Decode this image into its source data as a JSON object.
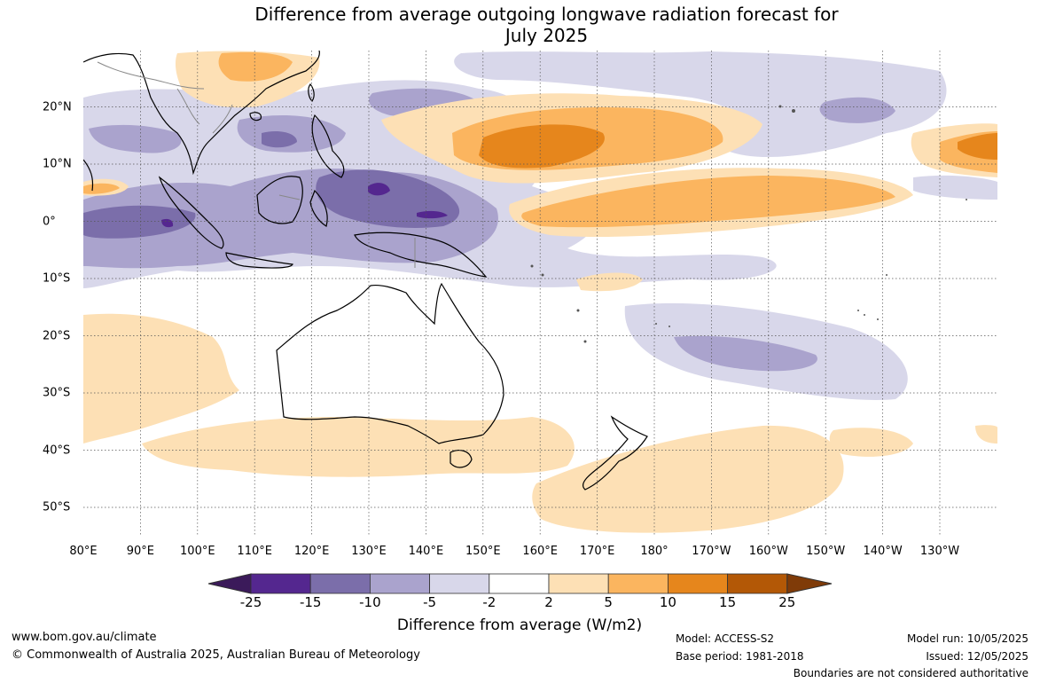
{
  "title": {
    "line1": "Difference from average outgoing longwave radiation forecast for",
    "line2": "July 2025"
  },
  "map": {
    "longitude_labels": [
      "80°E",
      "90°E",
      "100°E",
      "110°E",
      "120°E",
      "130°E",
      "140°E",
      "150°E",
      "160°E",
      "170°E",
      "180°",
      "170°W",
      "160°W",
      "150°W",
      "140°W",
      "130°W"
    ],
    "latitude_labels": [
      "20°N",
      "10°N",
      "0°",
      "10°S",
      "20°S",
      "30°S",
      "40°S",
      "50°S"
    ],
    "extent": {
      "lon_min": 80,
      "lon_max": 240,
      "lat_min": -55,
      "lat_max": 30
    }
  },
  "colorbar": {
    "tick_labels": [
      "-25",
      "-15",
      "-10",
      "-5",
      "-2",
      "2",
      "5",
      "10",
      "15",
      "25"
    ],
    "bins": [
      {
        "range": "< -25",
        "color": "#3b1a5a"
      },
      {
        "range": "-25 to -15",
        "color": "#54278f"
      },
      {
        "range": "-15 to -10",
        "color": "#7b6eaa"
      },
      {
        "range": "-10 to -5",
        "color": "#aaa3cd"
      },
      {
        "range": "-5 to -2",
        "color": "#d8d7ea"
      },
      {
        "range": "-2 to 2",
        "color": "#ffffff"
      },
      {
        "range": "2 to 5",
        "color": "#fde0b5"
      },
      {
        "range": "5 to 10",
        "color": "#fbb55f"
      },
      {
        "range": "10 to 15",
        "color": "#e6861c"
      },
      {
        "range": "15 to 25",
        "color": "#b35806"
      },
      {
        "range": "> 25",
        "color": "#7f3b08"
      }
    ],
    "label": "Difference from average (W/m2)"
  },
  "footer": {
    "website": "www.bom.gov.au/climate",
    "copyright": "© Commonwealth of Australia 2025, Australian Bureau of Meteorology",
    "model": "Model: ACCESS-S2",
    "base_period": "Base period: 1981-2018",
    "model_run": "Model run: 10/05/2025",
    "issued": "Issued: 12/05/2025",
    "disclaimer": "Boundaries are not considered authoritative"
  }
}
